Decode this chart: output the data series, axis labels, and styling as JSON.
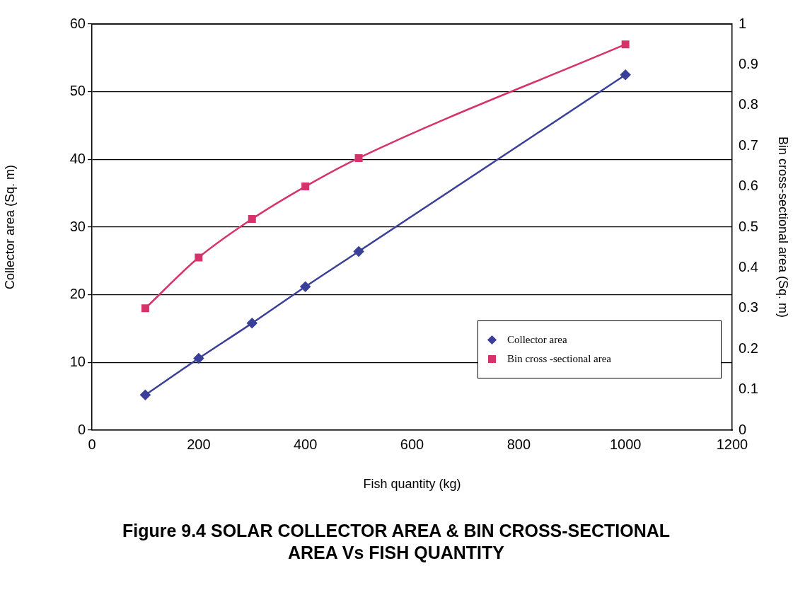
{
  "chart_data": {
    "type": "line",
    "title": "Figure 9.4  SOLAR COLLECTOR AREA & BIN CROSS-SECTIONAL AREA Vs FISH QUANTITY",
    "xlabel": "Fish quantity (kg)",
    "ylabel": "Collector area (Sq. m)",
    "y2label": "Bin cross-sectional area (Sq. m)",
    "x": [
      100,
      200,
      300,
      400,
      500,
      1000
    ],
    "series": [
      {
        "name": "Collector area",
        "color": "#3a3f9a",
        "marker": "diamond",
        "values": [
          5.2,
          10.6,
          15.8,
          21.2,
          26.4,
          52.5
        ]
      },
      {
        "name": "Bin cross -sectional area",
        "color": "#d6336c",
        "marker": "square",
        "axis": "y2",
        "values": [
          0.3,
          0.425,
          0.52,
          0.6,
          0.67,
          0.95
        ]
      }
    ],
    "xlim": [
      0,
      1200
    ],
    "xticks": [
      0,
      200,
      400,
      600,
      800,
      1000,
      1200
    ],
    "ylim": [
      0,
      60
    ],
    "yticks": [
      0,
      10,
      20,
      30,
      40,
      50,
      60
    ],
    "y2lim": [
      0,
      1
    ],
    "y2ticks": [
      0,
      0.1,
      0.2,
      0.3,
      0.4,
      0.5,
      0.6,
      0.7,
      0.8,
      0.9,
      1
    ],
    "grid": "y",
    "legend": "right"
  }
}
